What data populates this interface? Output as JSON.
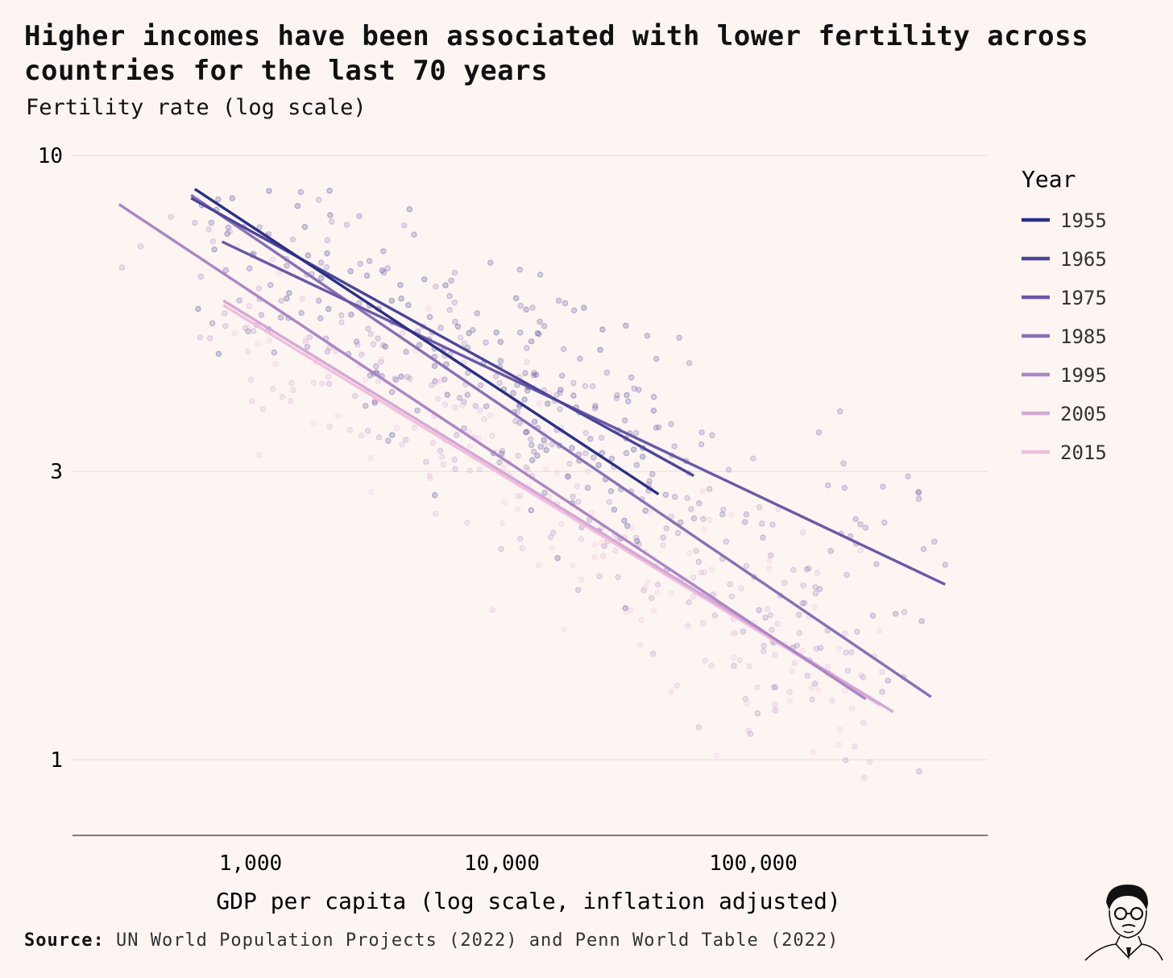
{
  "title": "Higher incomes have been associated with lower fertility across countries for the last 70 years",
  "y_axis_title": "Fertility rate (log scale)",
  "x_axis_title": "GDP per capita (log scale, inflation adjusted)",
  "source": {
    "label": "Source:",
    "text": "UN World Population Projects (2022) and Penn World Table (2022)"
  },
  "legend": {
    "title": "Year"
  },
  "chart_data": {
    "type": "scatter",
    "x_scale": "log",
    "y_scale": "log",
    "xlim": [
      250,
      600000
    ],
    "ylim": [
      0.75,
      10
    ],
    "x_ticks": [
      {
        "value": 1000,
        "label": "1,000"
      },
      {
        "value": 10000,
        "label": "10,000"
      },
      {
        "value": 100000,
        "label": "100,000"
      }
    ],
    "y_ticks": [
      {
        "value": 10,
        "label": "10"
      },
      {
        "value": 3,
        "label": "3"
      },
      {
        "value": 1,
        "label": "1"
      }
    ],
    "grid": "horizontal",
    "legend_position": "right",
    "series": [
      {
        "name": "1955",
        "color": "#2b2f86",
        "fit": [
          [
            600,
            8.8
          ],
          [
            42000,
            2.75
          ]
        ]
      },
      {
        "name": "1965",
        "color": "#4b4599",
        "fit": [
          [
            580,
            8.5
          ],
          [
            58000,
            2.95
          ]
        ]
      },
      {
        "name": "1975",
        "color": "#6a58a8",
        "fit": [
          [
            770,
            7.2
          ],
          [
            580000,
            1.95
          ]
        ]
      },
      {
        "name": "1985",
        "color": "#8871b6",
        "fit": [
          [
            580,
            8.6
          ],
          [
            510000,
            1.27
          ]
        ]
      },
      {
        "name": "1995",
        "color": "#ab86c4",
        "fit": [
          [
            300,
            8.3
          ],
          [
            280000,
            1.26
          ]
        ]
      },
      {
        "name": "2005",
        "color": "#d4a8d6",
        "fit": [
          [
            780,
            5.75
          ],
          [
            360000,
            1.2
          ]
        ]
      },
      {
        "name": "2015",
        "color": "#f2bedd",
        "fit": [
          [
            780,
            5.65
          ],
          [
            320000,
            1.23
          ]
        ]
      }
    ],
    "points_description_count": 700
  }
}
